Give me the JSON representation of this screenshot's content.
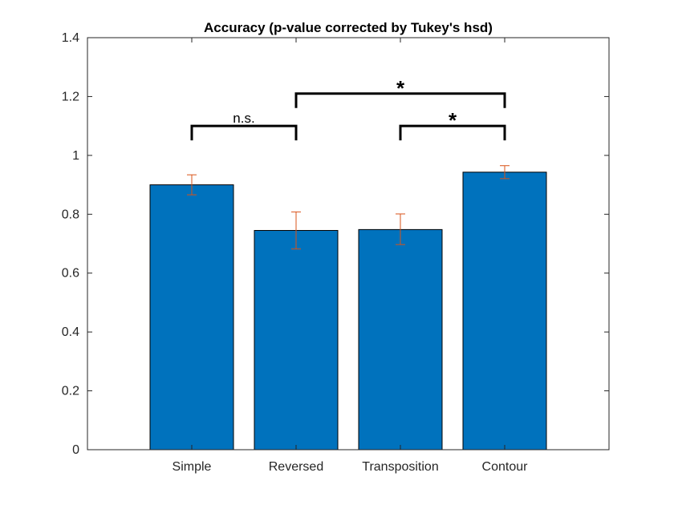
{
  "chart_data": {
    "type": "bar",
    "title": "Accuracy (p-value corrected by Tukey's hsd)",
    "xlabel": "",
    "ylabel": "",
    "categories": [
      "Simple",
      "Reversed",
      "Transposition",
      "Contour"
    ],
    "values": [
      0.9,
      0.745,
      0.748,
      0.943
    ],
    "error_low": [
      0.866,
      0.682,
      0.697,
      0.921
    ],
    "error_high": [
      0.934,
      0.808,
      0.801,
      0.965
    ],
    "ylim": [
      0,
      1.4
    ],
    "yticks": [
      "0",
      "0.2",
      "0.4",
      "0.6",
      "0.8",
      "1",
      "1.2",
      "1.4"
    ],
    "ytick_values": [
      0,
      0.2,
      0.4,
      0.6,
      0.8,
      1.0,
      1.2,
      1.4
    ],
    "grid": false,
    "bar_color": "#0072BD",
    "error_color": "#D95319",
    "significance": [
      {
        "from": "Simple",
        "to": "Reversed",
        "label": "n.s.",
        "y": 1.1
      },
      {
        "from": "Reversed",
        "to": "Contour",
        "label": "*",
        "y": 1.21
      },
      {
        "from": "Transposition",
        "to": "Contour",
        "label": "*",
        "y": 1.1
      }
    ]
  }
}
